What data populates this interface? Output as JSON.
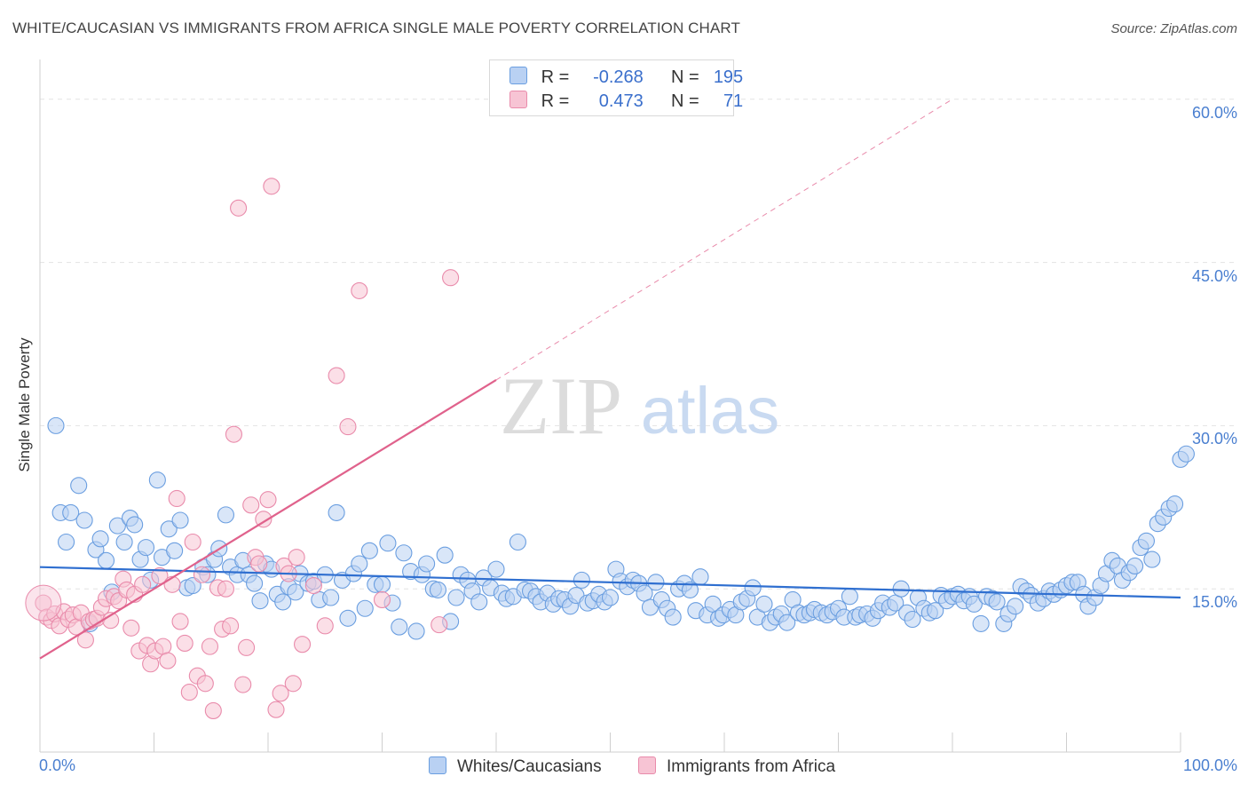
{
  "header": {
    "title": "WHITE/CAUCASIAN VS IMMIGRANTS FROM AFRICA SINGLE MALE POVERTY CORRELATION CHART",
    "source": "Source: ZipAtlas.com"
  },
  "watermark": {
    "zip": "ZIP",
    "atlas": "atlas"
  },
  "legend_box": {
    "rows": [
      {
        "r_label": "R =",
        "r_value": "-0.268",
        "n_label": "N =",
        "n_value": "195"
      },
      {
        "r_label": "R =",
        "r_value": "0.473",
        "n_label": "N =",
        "n_value": "71"
      }
    ]
  },
  "chart_data": {
    "type": "scatter",
    "title": "WHITE/CAUCASIAN VS IMMIGRANTS FROM AFRICA SINGLE MALE POVERTY CORRELATION CHART",
    "xlabel": "",
    "ylabel": "Single Male Poverty",
    "xlim": [
      0,
      100
    ],
    "ylim": [
      0,
      63
    ],
    "y_ticks": [
      {
        "value": 15,
        "label": "15.0%"
      },
      {
        "value": 30,
        "label": "30.0%"
      },
      {
        "value": 45,
        "label": "45.0%"
      },
      {
        "value": 60,
        "label": "60.0%"
      }
    ],
    "x_tick_labels": [
      {
        "value": 0,
        "label": "0.0%"
      },
      {
        "value": 100,
        "label": "100.0%"
      }
    ],
    "grid": true,
    "legend_position": "top-center",
    "series": [
      {
        "name": "Whites/Caucasians",
        "color": "#6a9ee0",
        "fill": "#b9d1f3",
        "r": -0.268,
        "n": 195,
        "trend": {
          "x": [
            0,
            100
          ],
          "y": [
            17.0,
            14.2
          ],
          "style": "solid"
        },
        "points": [
          [
            1.4,
            30.0
          ],
          [
            1.8,
            22.0
          ],
          [
            2.3,
            19.3
          ],
          [
            2.7,
            22.0
          ],
          [
            3.4,
            24.5
          ],
          [
            3.9,
            21.3
          ],
          [
            4.4,
            11.8
          ],
          [
            4.9,
            18.6
          ],
          [
            5.3,
            19.6
          ],
          [
            5.8,
            17.6
          ],
          [
            6.3,
            14.7
          ],
          [
            6.8,
            20.8
          ],
          [
            7.4,
            19.3
          ],
          [
            7.9,
            21.5
          ],
          [
            8.3,
            20.9
          ],
          [
            8.8,
            17.7
          ],
          [
            9.3,
            18.8
          ],
          [
            9.7,
            15.8
          ],
          [
            10.3,
            25.0
          ],
          [
            10.7,
            17.9
          ],
          [
            11.3,
            20.5
          ],
          [
            11.8,
            18.5
          ],
          [
            12.3,
            21.3
          ],
          [
            12.9,
            15.1
          ],
          [
            13.4,
            15.3
          ],
          [
            14.3,
            17.0
          ],
          [
            14.7,
            16.3
          ],
          [
            15.3,
            17.7
          ],
          [
            15.7,
            18.7
          ],
          [
            16.3,
            21.8
          ],
          [
            16.7,
            17.0
          ],
          [
            17.3,
            16.3
          ],
          [
            17.8,
            17.6
          ],
          [
            18.3,
            16.3
          ],
          [
            18.8,
            15.5
          ],
          [
            19.3,
            13.9
          ],
          [
            19.8,
            17.3
          ],
          [
            20.3,
            16.8
          ],
          [
            20.8,
            14.5
          ],
          [
            21.3,
            13.8
          ],
          [
            21.8,
            15.2
          ],
          [
            22.4,
            14.7
          ],
          [
            22.8,
            16.4
          ],
          [
            23.5,
            15.5
          ],
          [
            24.0,
            15.7
          ],
          [
            24.5,
            14.0
          ],
          [
            25.0,
            16.3
          ],
          [
            25.5,
            14.2
          ],
          [
            26.0,
            22.0
          ],
          [
            26.5,
            15.8
          ],
          [
            27.0,
            12.3
          ],
          [
            27.5,
            16.4
          ],
          [
            28.0,
            17.3
          ],
          [
            28.5,
            13.2
          ],
          [
            28.9,
            18.5
          ],
          [
            29.4,
            15.4
          ],
          [
            30.0,
            15.4
          ],
          [
            30.5,
            19.2
          ],
          [
            30.9,
            13.7
          ],
          [
            31.5,
            11.5
          ],
          [
            31.9,
            18.3
          ],
          [
            32.5,
            16.6
          ],
          [
            33.0,
            11.1
          ],
          [
            33.5,
            16.3
          ],
          [
            33.9,
            17.3
          ],
          [
            34.5,
            15.0
          ],
          [
            34.9,
            14.9
          ],
          [
            35.5,
            18.1
          ],
          [
            36.0,
            12.0
          ],
          [
            36.5,
            14.2
          ],
          [
            36.9,
            16.3
          ],
          [
            37.5,
            15.8
          ],
          [
            37.9,
            14.8
          ],
          [
            38.5,
            13.8
          ],
          [
            38.9,
            16.0
          ],
          [
            39.5,
            15.1
          ],
          [
            40.0,
            16.8
          ],
          [
            40.5,
            14.6
          ],
          [
            40.9,
            14.1
          ],
          [
            41.5,
            14.3
          ],
          [
            41.9,
            19.3
          ],
          [
            42.5,
            14.9
          ],
          [
            43.0,
            14.8
          ],
          [
            43.5,
            14.3
          ],
          [
            43.9,
            13.8
          ],
          [
            44.5,
            14.6
          ],
          [
            45.0,
            13.6
          ],
          [
            45.5,
            14.1
          ],
          [
            46.0,
            14.0
          ],
          [
            46.5,
            13.4
          ],
          [
            47.0,
            14.4
          ],
          [
            47.5,
            15.8
          ],
          [
            48.0,
            13.7
          ],
          [
            48.5,
            13.9
          ],
          [
            49.0,
            14.5
          ],
          [
            49.5,
            13.8
          ],
          [
            50.0,
            14.2
          ],
          [
            50.5,
            16.8
          ],
          [
            50.9,
            15.7
          ],
          [
            51.5,
            15.2
          ],
          [
            52.0,
            15.8
          ],
          [
            52.5,
            15.5
          ],
          [
            53.0,
            14.6
          ],
          [
            53.5,
            13.3
          ],
          [
            54.0,
            15.6
          ],
          [
            54.5,
            14.0
          ],
          [
            55.0,
            13.2
          ],
          [
            55.5,
            12.4
          ],
          [
            56.0,
            15.0
          ],
          [
            56.5,
            15.5
          ],
          [
            57.0,
            14.9
          ],
          [
            57.5,
            13.0
          ],
          [
            57.9,
            16.1
          ],
          [
            58.5,
            12.6
          ],
          [
            59.0,
            13.6
          ],
          [
            59.5,
            12.3
          ],
          [
            59.9,
            12.6
          ],
          [
            60.5,
            13.1
          ],
          [
            61.0,
            12.6
          ],
          [
            61.5,
            13.8
          ],
          [
            62.0,
            14.1
          ],
          [
            62.5,
            15.1
          ],
          [
            62.9,
            12.4
          ],
          [
            63.5,
            13.6
          ],
          [
            64.0,
            11.9
          ],
          [
            64.5,
            12.4
          ],
          [
            65.0,
            12.7
          ],
          [
            65.5,
            11.9
          ],
          [
            66.0,
            14.0
          ],
          [
            66.5,
            12.8
          ],
          [
            67.0,
            12.6
          ],
          [
            67.5,
            12.8
          ],
          [
            67.9,
            13.1
          ],
          [
            68.5,
            12.8
          ],
          [
            69.0,
            12.6
          ],
          [
            69.5,
            12.9
          ],
          [
            70.0,
            13.2
          ],
          [
            70.5,
            12.4
          ],
          [
            71.0,
            14.3
          ],
          [
            71.5,
            12.4
          ],
          [
            71.9,
            12.6
          ],
          [
            72.5,
            12.7
          ],
          [
            73.0,
            12.3
          ],
          [
            73.5,
            13.0
          ],
          [
            73.9,
            13.7
          ],
          [
            74.5,
            13.3
          ],
          [
            75.0,
            13.7
          ],
          [
            75.5,
            15.0
          ],
          [
            76.0,
            12.8
          ],
          [
            76.5,
            12.2
          ],
          [
            77.0,
            14.2
          ],
          [
            77.5,
            13.2
          ],
          [
            78.0,
            12.8
          ],
          [
            78.5,
            13.0
          ],
          [
            79.0,
            14.4
          ],
          [
            79.5,
            13.9
          ],
          [
            80.0,
            14.3
          ],
          [
            80.5,
            14.5
          ],
          [
            81.0,
            13.9
          ],
          [
            81.5,
            14.3
          ],
          [
            81.9,
            13.6
          ],
          [
            82.5,
            11.8
          ],
          [
            83.0,
            14.3
          ],
          [
            83.5,
            14.1
          ],
          [
            83.9,
            13.8
          ],
          [
            84.5,
            11.8
          ],
          [
            84.9,
            12.7
          ],
          [
            85.5,
            13.4
          ],
          [
            86.0,
            15.2
          ],
          [
            86.5,
            14.8
          ],
          [
            86.9,
            14.4
          ],
          [
            87.5,
            13.7
          ],
          [
            88.0,
            14.1
          ],
          [
            88.5,
            14.8
          ],
          [
            88.9,
            14.5
          ],
          [
            89.5,
            14.9
          ],
          [
            90.0,
            15.3
          ],
          [
            90.5,
            15.6
          ],
          [
            91.0,
            15.6
          ],
          [
            91.5,
            14.5
          ],
          [
            91.9,
            13.4
          ],
          [
            92.5,
            14.2
          ],
          [
            93.0,
            15.3
          ],
          [
            93.5,
            16.4
          ],
          [
            94.0,
            17.6
          ],
          [
            94.5,
            17.1
          ],
          [
            94.9,
            15.8
          ],
          [
            95.5,
            16.5
          ],
          [
            96.0,
            17.1
          ],
          [
            96.5,
            18.8
          ],
          [
            97.0,
            19.4
          ],
          [
            97.5,
            17.7
          ],
          [
            98.0,
            21.0
          ],
          [
            98.5,
            21.6
          ],
          [
            99.0,
            22.4
          ],
          [
            99.5,
            22.8
          ],
          [
            100.0,
            26.9
          ],
          [
            100.5,
            27.4
          ]
        ]
      },
      {
        "name": "Immigrants from Africa",
        "color": "#e98bab",
        "fill": "#f7c4d4",
        "r": 0.473,
        "n": 71,
        "trend": {
          "x": [
            0,
            40
          ],
          "y": [
            8.6,
            34.2
          ],
          "dashed_extension_to": [
            80,
            60.0
          ]
        },
        "points": [
          [
            0.3,
            13.7
          ],
          [
            0.6,
            12.4
          ],
          [
            1.0,
            12.1
          ],
          [
            1.3,
            12.7
          ],
          [
            1.7,
            11.6
          ],
          [
            2.1,
            12.9
          ],
          [
            2.5,
            12.2
          ],
          [
            2.9,
            12.6
          ],
          [
            3.2,
            11.5
          ],
          [
            3.6,
            12.8
          ],
          [
            4.0,
            10.3
          ],
          [
            4.3,
            12.0
          ],
          [
            4.7,
            12.2
          ],
          [
            5.0,
            12.3
          ],
          [
            5.4,
            13.3
          ],
          [
            5.8,
            14.1
          ],
          [
            6.2,
            12.1
          ],
          [
            6.5,
            14.3
          ],
          [
            6.9,
            13.9
          ],
          [
            7.3,
            15.9
          ],
          [
            7.6,
            14.9
          ],
          [
            8.0,
            11.4
          ],
          [
            8.3,
            14.5
          ],
          [
            8.7,
            9.3
          ],
          [
            9.0,
            15.4
          ],
          [
            9.4,
            9.8
          ],
          [
            9.7,
            8.1
          ],
          [
            10.1,
            9.3
          ],
          [
            10.5,
            16.2
          ],
          [
            10.8,
            9.7
          ],
          [
            11.2,
            8.4
          ],
          [
            11.6,
            15.4
          ],
          [
            12.0,
            23.3
          ],
          [
            12.3,
            12.0
          ],
          [
            12.7,
            10.0
          ],
          [
            13.1,
            5.5
          ],
          [
            13.4,
            19.3
          ],
          [
            13.8,
            7.0
          ],
          [
            14.2,
            16.3
          ],
          [
            14.5,
            6.3
          ],
          [
            14.9,
            9.7
          ],
          [
            15.2,
            3.8
          ],
          [
            15.6,
            15.1
          ],
          [
            16.0,
            11.3
          ],
          [
            16.3,
            15.0
          ],
          [
            16.7,
            11.6
          ],
          [
            17.0,
            29.2
          ],
          [
            17.4,
            50.0
          ],
          [
            17.8,
            6.2
          ],
          [
            18.1,
            9.6
          ],
          [
            18.5,
            22.7
          ],
          [
            18.9,
            17.9
          ],
          [
            19.2,
            17.3
          ],
          [
            19.6,
            21.4
          ],
          [
            20.0,
            23.2
          ],
          [
            20.3,
            52.0
          ],
          [
            20.7,
            3.9
          ],
          [
            21.1,
            5.4
          ],
          [
            21.4,
            17.1
          ],
          [
            21.8,
            16.4
          ],
          [
            22.2,
            6.3
          ],
          [
            22.5,
            17.9
          ],
          [
            23.0,
            9.9
          ],
          [
            24.0,
            15.3
          ],
          [
            25.0,
            11.6
          ],
          [
            26.0,
            34.6
          ],
          [
            27.0,
            29.9
          ],
          [
            28.0,
            42.4
          ],
          [
            30.0,
            14.0
          ],
          [
            35.0,
            11.7
          ],
          [
            36.0,
            43.6
          ]
        ]
      }
    ]
  },
  "bottom_legend": {
    "items": [
      {
        "label": "Whites/Caucasians",
        "color": "#b9d1f3",
        "border": "#6a9ee0"
      },
      {
        "label": "Immigrants from Africa",
        "color": "#f7c4d4",
        "border": "#e98bab"
      }
    ]
  }
}
